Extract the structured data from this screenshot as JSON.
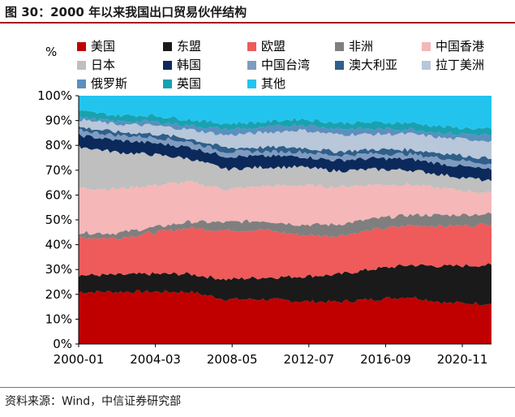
{
  "title": "图 30：2000 年以来我国出口贸易伙伴结构",
  "source": "资料来源：Wind，中信证券研究部",
  "unit": "%",
  "chart_data": {
    "type": "area",
    "stacked": true,
    "percent": true,
    "ylim": [
      0,
      100
    ],
    "y_ticks": [
      "0%",
      "10%",
      "20%",
      "30%",
      "40%",
      "50%",
      "60%",
      "70%",
      "80%",
      "90%",
      "100%"
    ],
    "x_ticks": [
      "2000-01",
      "2004-03",
      "2008-05",
      "2012-07",
      "2016-09",
      "2020-11"
    ],
    "x": [
      "2000-01",
      "2002-01",
      "2004-01",
      "2006-01",
      "2008-01",
      "2010-01",
      "2012-01",
      "2014-01",
      "2016-01",
      "2018-01",
      "2020-01",
      "2022-06"
    ],
    "series": [
      {
        "name": "美国",
        "color": "#c00000",
        "values": [
          20.9,
          21.0,
          21.0,
          21.0,
          18.0,
          18.0,
          17.2,
          16.9,
          18.0,
          19.0,
          16.5,
          16.3
        ]
      },
      {
        "name": "东盟",
        "color": "#1a1a1a",
        "values": [
          6.8,
          6.8,
          7.2,
          7.2,
          8.0,
          8.8,
          10.0,
          11.0,
          12.2,
          12.8,
          14.8,
          15.6
        ]
      },
      {
        "name": "欧盟",
        "color": "#ef5a5a",
        "values": [
          15.2,
          14.8,
          16.5,
          18.5,
          19.8,
          19.2,
          16.7,
          15.6,
          15.7,
          16.0,
          16.1,
          16.3
        ]
      },
      {
        "name": "非洲",
        "color": "#7f7f7f",
        "values": [
          2.0,
          2.0,
          2.2,
          2.5,
          3.2,
          3.7,
          4.2,
          4.6,
          4.5,
          4.2,
          4.5,
          4.3
        ]
      },
      {
        "name": "中国香港",
        "color": "#f5b7b7",
        "values": [
          18.0,
          17.8,
          17.0,
          16.0,
          13.3,
          13.8,
          15.8,
          15.2,
          13.8,
          12.2,
          10.5,
          8.3
        ]
      },
      {
        "name": "日本",
        "color": "#bfbfbf",
        "values": [
          16.7,
          14.9,
          12.4,
          9.5,
          8.1,
          7.7,
          7.4,
          6.4,
          6.1,
          5.9,
          5.5,
          4.8
        ]
      },
      {
        "name": "韩国",
        "color": "#0b2a5b",
        "values": [
          4.5,
          4.8,
          4.7,
          4.6,
          5.2,
          4.4,
          4.3,
          4.3,
          4.5,
          4.4,
          4.4,
          4.5
        ]
      },
      {
        "name": "中国台湾",
        "color": "#7f9cc0",
        "values": [
          2.0,
          2.0,
          2.3,
          2.1,
          1.8,
          1.9,
          1.8,
          1.9,
          1.9,
          1.9,
          2.3,
          2.4
        ]
      },
      {
        "name": "澳大利亚",
        "color": "#2f5f8a",
        "values": [
          1.3,
          1.3,
          1.4,
          1.4,
          1.6,
          1.7,
          1.8,
          1.6,
          1.7,
          1.9,
          2.1,
          2.1
        ]
      },
      {
        "name": "拉丁美洲",
        "color": "#b8c7d9",
        "values": [
          3.0,
          3.1,
          3.3,
          3.6,
          5.1,
          5.9,
          7.0,
          6.9,
          6.1,
          6.3,
          6.1,
          7.3
        ]
      },
      {
        "name": "俄罗斯",
        "color": "#5b8fbf",
        "values": [
          0.9,
          1.1,
          1.6,
          1.6,
          2.3,
          1.9,
          2.2,
          2.4,
          2.0,
          2.0,
          2.0,
          2.2
        ]
      },
      {
        "name": "英国",
        "color": "#1aa1b0",
        "values": [
          2.5,
          2.5,
          2.5,
          2.4,
          2.4,
          2.4,
          2.3,
          2.3,
          2.7,
          2.5,
          2.5,
          2.4
        ]
      },
      {
        "name": "其他",
        "color": "#22c4ee",
        "values": [
          6.2,
          5.9,
          3.9,
          5.6,
          11.2,
          12.6,
          9.3,
          10.9,
          10.8,
          10.9,
          12.7,
          13.5
        ]
      }
    ]
  }
}
